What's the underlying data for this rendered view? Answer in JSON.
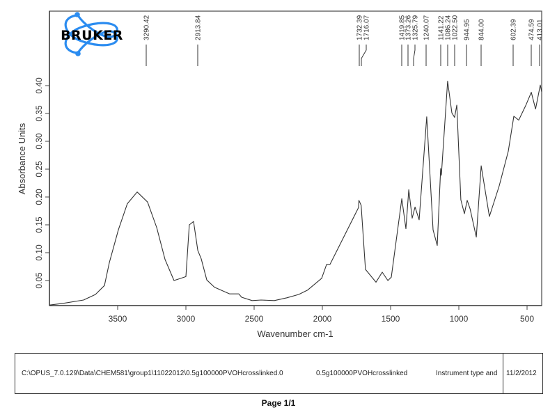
{
  "header": {
    "logo_text": "BRUKER",
    "logo_color": "#2b8cf0"
  },
  "chart_data": {
    "type": "line",
    "title": "",
    "xlabel": "Wavenumber cm-1",
    "ylabel": "Absorbance Units",
    "xlim": [
      4000,
      388
    ],
    "ylim": [
      0,
      0.42
    ],
    "x_reversed": true,
    "grid": false,
    "legend": null,
    "x_ticks": [
      3500,
      3000,
      2500,
      2000,
      1500,
      1000,
      500
    ],
    "x_tick_labels": [
      "3500",
      "3000",
      "2500",
      "2000",
      "1500",
      "1000",
      "500"
    ],
    "y_ticks": [
      0.05,
      0.1,
      0.15,
      0.2,
      0.25,
      0.3,
      0.35,
      0.4
    ],
    "y_tick_labels": [
      "0.05",
      "0.10",
      "0.15",
      "0.20",
      "0.25",
      "0.30",
      "0.35",
      "0.40"
    ],
    "peak_labels": [
      "3290.42",
      "2913.84",
      "1732.39",
      "1716.07",
      "1419.85",
      "1373.26",
      "1325.79",
      "1240.07",
      "1141.22",
      "1086.24",
      "1022.50",
      "944.95",
      "844.00",
      "602.39",
      "474.59",
      "413.01"
    ],
    "series": [
      {
        "name": "0.5g100000PVOHcrosslinked",
        "color": "#333333",
        "x": [
          3998,
          3900,
          3750,
          3663,
          3597,
          3561,
          3495,
          3429,
          3357,
          3281,
          3214,
          3153,
          3087,
          3000,
          2975,
          2944,
          2913,
          2888,
          2847,
          2791,
          2679,
          2612,
          2592,
          2515,
          2449,
          2352,
          2260,
          2173,
          2107,
          2005,
          1969,
          1954,
          1944,
          1735,
          1732,
          1716,
          1684,
          1607,
          1561,
          1520,
          1495,
          1418,
          1388,
          1367,
          1342,
          1321,
          1291,
          1235,
          1189,
          1158,
          1133,
          1128,
          1082,
          1051,
          1031,
          1015,
          985,
          959,
          939,
          918,
          872,
          836,
          776,
          704,
          638,
          597,
          561,
          510,
          469,
          438,
          403,
          393
        ],
        "y": [
          0.006,
          0.009,
          0.015,
          0.025,
          0.041,
          0.082,
          0.141,
          0.188,
          0.209,
          0.191,
          0.145,
          0.088,
          0.05,
          0.057,
          0.15,
          0.156,
          0.104,
          0.089,
          0.051,
          0.038,
          0.026,
          0.026,
          0.02,
          0.014,
          0.015,
          0.014,
          0.019,
          0.025,
          0.033,
          0.054,
          0.079,
          0.079,
          0.079,
          0.181,
          0.194,
          0.185,
          0.07,
          0.047,
          0.065,
          0.05,
          0.056,
          0.197,
          0.143,
          0.213,
          0.162,
          0.182,
          0.159,
          0.344,
          0.141,
          0.113,
          0.251,
          0.239,
          0.408,
          0.351,
          0.343,
          0.365,
          0.195,
          0.17,
          0.194,
          0.179,
          0.128,
          0.256,
          0.165,
          0.22,
          0.282,
          0.345,
          0.338,
          0.364,
          0.388,
          0.358,
          0.401,
          0.389
        ]
      }
    ]
  },
  "footer": {
    "file_path": "C:\\OPUS_7.0.129\\Data\\CHEM581\\group1\\11022012\\0.5g100000PVOHcrosslinked.0",
    "sample_name": "0.5g100000PVOHcrosslinked",
    "instrument": "Instrument type and",
    "date": "11/2/2012"
  },
  "page": {
    "label": "Page 1/1"
  }
}
